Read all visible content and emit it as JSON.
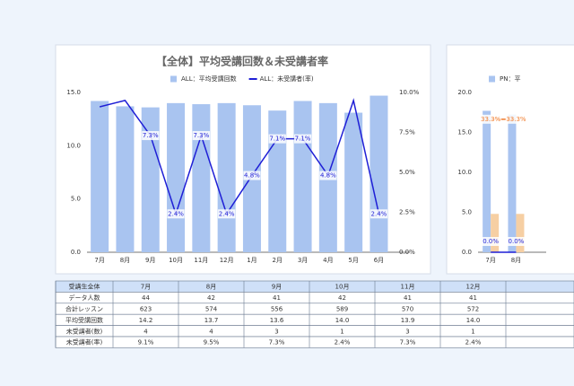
{
  "chart_data": [
    {
      "type": "bar_line",
      "title": "【全体】平均受講回数＆未受講者率",
      "categories": [
        "7月",
        "8月",
        "9月",
        "10月",
        "11月",
        "12月",
        "1月",
        "2月",
        "3月",
        "4月",
        "5月",
        "6月"
      ],
      "series": [
        {
          "name": "ALL：平均受講回数",
          "type": "bar",
          "color": "#a9c4f0",
          "values": [
            14.2,
            13.7,
            13.6,
            14.0,
            13.9,
            14.0,
            13.8,
            13.3,
            14.2,
            14.0,
            13.1,
            14.7
          ]
        },
        {
          "name": "ALL：未受講者(率)",
          "type": "line",
          "axis": "y2",
          "color": "#1f1fd6",
          "values": [
            9.1,
            9.5,
            7.3,
            2.4,
            7.3,
            2.4,
            4.8,
            7.1,
            7.1,
            4.8,
            9.5,
            2.4
          ],
          "value_labels": [
            null,
            null,
            "7.3%",
            "2.4%",
            "7.3%",
            "2.4%",
            "4.8%",
            "7.1%",
            "7.1%",
            "4.8%",
            null,
            "2.4%"
          ]
        }
      ],
      "ylim": [
        0,
        15
      ],
      "yticks": [
        {
          "value": 0,
          "label": "0.0"
        },
        {
          "value": 5,
          "label": "5.0"
        },
        {
          "value": 10,
          "label": "10.0"
        },
        {
          "value": 15,
          "label": "15.0"
        }
      ],
      "y2lim": [
        0,
        10
      ],
      "y2ticks": [
        {
          "value": 0,
          "label": "0.0%"
        },
        {
          "value": 2.5,
          "label": "2.5%"
        },
        {
          "value": 5,
          "label": "5.0%"
        },
        {
          "value": 7.5,
          "label": "7.5%"
        },
        {
          "value": 10,
          "label": "10.0%"
        }
      ],
      "grid": false
    },
    {
      "type": "bar_line",
      "categories": [
        "7月",
        "8月"
      ],
      "series": [
        {
          "name": "PN：平",
          "type": "bar",
          "color": "#a9c4f0",
          "values": [
            17.7,
            17.2
          ]
        },
        {
          "type": "bar",
          "color": "#f6cfa3",
          "values": [
            4.8,
            4.8
          ]
        },
        {
          "type": "line",
          "axis": "y2",
          "color": "#f07a2a",
          "values": [
            33.3,
            33.3
          ],
          "value_labels": [
            "33.3%",
            "33.3%"
          ]
        },
        {
          "type": "line",
          "axis": "y2",
          "color": "#1f1fd6",
          "values": [
            0,
            0
          ],
          "value_labels": [
            "0.0%",
            "0.0%"
          ]
        }
      ],
      "ylim": [
        0,
        20
      ],
      "yticks": [
        {
          "value": 0,
          "label": "0.0"
        },
        {
          "value": 5,
          "label": "5.0"
        },
        {
          "value": 10,
          "label": "10.0"
        },
        {
          "value": 15,
          "label": "15.0"
        },
        {
          "value": 20,
          "label": "20.0"
        }
      ],
      "y2lim": [
        0,
        40
      ],
      "grid": false
    }
  ],
  "table": {
    "header": [
      "受講生全体",
      "7月",
      "8月",
      "9月",
      "10月",
      "11月",
      "12月"
    ],
    "rows": [
      [
        "データ人数",
        "44",
        "42",
        "41",
        "42",
        "41",
        "41"
      ],
      [
        "合計レッスン",
        "623",
        "574",
        "556",
        "589",
        "570",
        "572"
      ],
      [
        "平均受講回数",
        "14.2",
        "13.7",
        "13.6",
        "14.0",
        "13.9",
        "14.0"
      ],
      [
        "未受講者(数)",
        "4",
        "4",
        "3",
        "1",
        "3",
        "1"
      ],
      [
        "未受講者(率)",
        "9.1%",
        "9.5%",
        "7.3%",
        "2.4%",
        "7.3%",
        "2.4%"
      ]
    ]
  }
}
